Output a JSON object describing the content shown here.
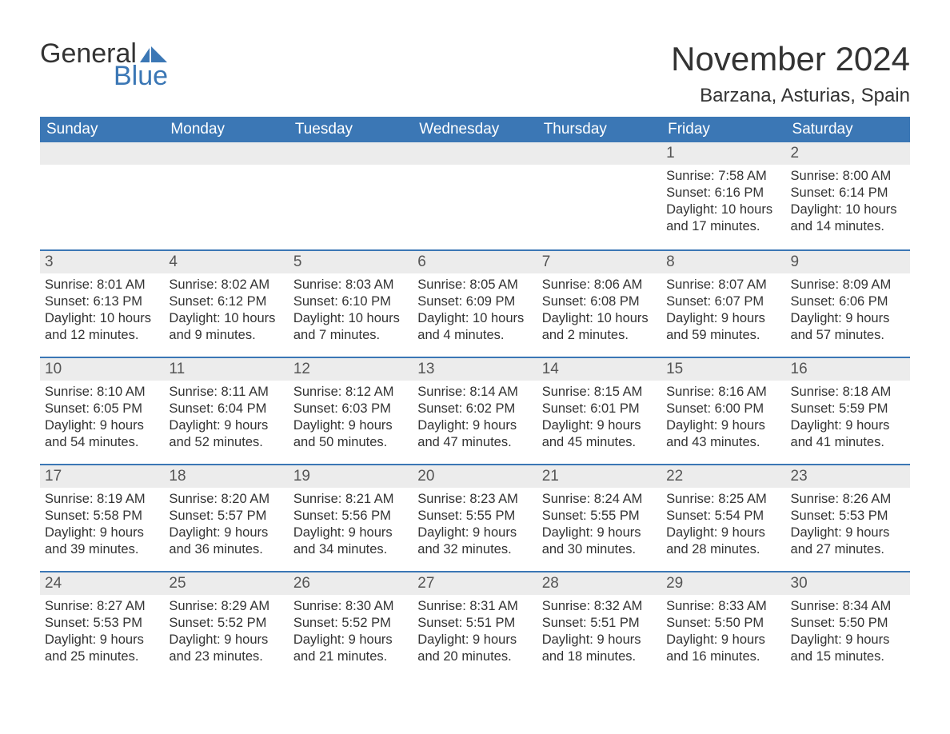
{
  "logo": {
    "word1": "General",
    "word2": "Blue"
  },
  "header": {
    "month_title": "November 2024",
    "location": "Barzana, Asturias, Spain"
  },
  "styling": {
    "accent_color": "#3b77b5",
    "header_bg": "#3b77b5",
    "header_text_color": "#ffffff",
    "daynum_bg": "#ececec",
    "body_text_color": "#333333",
    "page_bg": "#ffffff",
    "month_title_fontsize": 42,
    "location_fontsize": 24,
    "weekday_fontsize": 19,
    "daynum_fontsize": 19,
    "body_fontsize": 16.5,
    "columns": 7,
    "rows": 5
  },
  "weekdays": [
    "Sunday",
    "Monday",
    "Tuesday",
    "Wednesday",
    "Thursday",
    "Friday",
    "Saturday"
  ],
  "labels": {
    "sunrise": "Sunrise:",
    "sunset": "Sunset:",
    "daylight": "Daylight:"
  },
  "weeks": [
    [
      null,
      null,
      null,
      null,
      null,
      {
        "n": "1",
        "sunrise": "7:58 AM",
        "sunset": "6:16 PM",
        "daylight": "10 hours and 17 minutes."
      },
      {
        "n": "2",
        "sunrise": "8:00 AM",
        "sunset": "6:14 PM",
        "daylight": "10 hours and 14 minutes."
      }
    ],
    [
      {
        "n": "3",
        "sunrise": "8:01 AM",
        "sunset": "6:13 PM",
        "daylight": "10 hours and 12 minutes."
      },
      {
        "n": "4",
        "sunrise": "8:02 AM",
        "sunset": "6:12 PM",
        "daylight": "10 hours and 9 minutes."
      },
      {
        "n": "5",
        "sunrise": "8:03 AM",
        "sunset": "6:10 PM",
        "daylight": "10 hours and 7 minutes."
      },
      {
        "n": "6",
        "sunrise": "8:05 AM",
        "sunset": "6:09 PM",
        "daylight": "10 hours and 4 minutes."
      },
      {
        "n": "7",
        "sunrise": "8:06 AM",
        "sunset": "6:08 PM",
        "daylight": "10 hours and 2 minutes."
      },
      {
        "n": "8",
        "sunrise": "8:07 AM",
        "sunset": "6:07 PM",
        "daylight": "9 hours and 59 minutes."
      },
      {
        "n": "9",
        "sunrise": "8:09 AM",
        "sunset": "6:06 PM",
        "daylight": "9 hours and 57 minutes."
      }
    ],
    [
      {
        "n": "10",
        "sunrise": "8:10 AM",
        "sunset": "6:05 PM",
        "daylight": "9 hours and 54 minutes."
      },
      {
        "n": "11",
        "sunrise": "8:11 AM",
        "sunset": "6:04 PM",
        "daylight": "9 hours and 52 minutes."
      },
      {
        "n": "12",
        "sunrise": "8:12 AM",
        "sunset": "6:03 PM",
        "daylight": "9 hours and 50 minutes."
      },
      {
        "n": "13",
        "sunrise": "8:14 AM",
        "sunset": "6:02 PM",
        "daylight": "9 hours and 47 minutes."
      },
      {
        "n": "14",
        "sunrise": "8:15 AM",
        "sunset": "6:01 PM",
        "daylight": "9 hours and 45 minutes."
      },
      {
        "n": "15",
        "sunrise": "8:16 AM",
        "sunset": "6:00 PM",
        "daylight": "9 hours and 43 minutes."
      },
      {
        "n": "16",
        "sunrise": "8:18 AM",
        "sunset": "5:59 PM",
        "daylight": "9 hours and 41 minutes."
      }
    ],
    [
      {
        "n": "17",
        "sunrise": "8:19 AM",
        "sunset": "5:58 PM",
        "daylight": "9 hours and 39 minutes."
      },
      {
        "n": "18",
        "sunrise": "8:20 AM",
        "sunset": "5:57 PM",
        "daylight": "9 hours and 36 minutes."
      },
      {
        "n": "19",
        "sunrise": "8:21 AM",
        "sunset": "5:56 PM",
        "daylight": "9 hours and 34 minutes."
      },
      {
        "n": "20",
        "sunrise": "8:23 AM",
        "sunset": "5:55 PM",
        "daylight": "9 hours and 32 minutes."
      },
      {
        "n": "21",
        "sunrise": "8:24 AM",
        "sunset": "5:55 PM",
        "daylight": "9 hours and 30 minutes."
      },
      {
        "n": "22",
        "sunrise": "8:25 AM",
        "sunset": "5:54 PM",
        "daylight": "9 hours and 28 minutes."
      },
      {
        "n": "23",
        "sunrise": "8:26 AM",
        "sunset": "5:53 PM",
        "daylight": "9 hours and 27 minutes."
      }
    ],
    [
      {
        "n": "24",
        "sunrise": "8:27 AM",
        "sunset": "5:53 PM",
        "daylight": "9 hours and 25 minutes."
      },
      {
        "n": "25",
        "sunrise": "8:29 AM",
        "sunset": "5:52 PM",
        "daylight": "9 hours and 23 minutes."
      },
      {
        "n": "26",
        "sunrise": "8:30 AM",
        "sunset": "5:52 PM",
        "daylight": "9 hours and 21 minutes."
      },
      {
        "n": "27",
        "sunrise": "8:31 AM",
        "sunset": "5:51 PM",
        "daylight": "9 hours and 20 minutes."
      },
      {
        "n": "28",
        "sunrise": "8:32 AM",
        "sunset": "5:51 PM",
        "daylight": "9 hours and 18 minutes."
      },
      {
        "n": "29",
        "sunrise": "8:33 AM",
        "sunset": "5:50 PM",
        "daylight": "9 hours and 16 minutes."
      },
      {
        "n": "30",
        "sunrise": "8:34 AM",
        "sunset": "5:50 PM",
        "daylight": "9 hours and 15 minutes."
      }
    ]
  ]
}
